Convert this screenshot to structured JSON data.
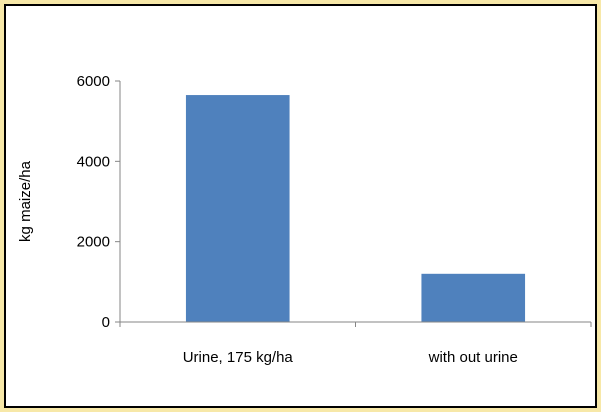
{
  "chart_data": {
    "type": "bar",
    "title": "",
    "xlabel": "",
    "ylabel": "kg maize/ha",
    "categories": [
      "Urine, 175 kg/ha",
      "with out urine"
    ],
    "values": [
      5650,
      1200
    ],
    "ylim": [
      0,
      6000
    ],
    "yticks": [
      0,
      2000,
      4000,
      6000
    ],
    "grid": false,
    "legend": "none",
    "bar_color": "#4f81bd",
    "axis_color": "#868686"
  },
  "colors": {
    "frame_outer": "#f7e8a8",
    "frame_border": "#000000",
    "background": "#ffffff"
  }
}
